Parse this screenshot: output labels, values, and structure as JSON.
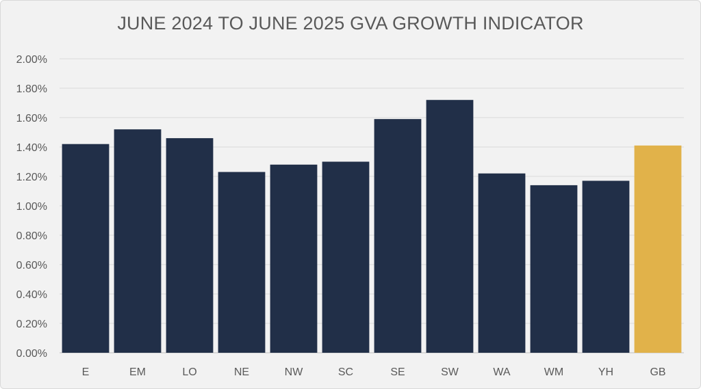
{
  "chart_data": {
    "type": "bar",
    "title": "JUNE 2024 TO JUNE 2025 GVA GROWTH INDICATOR",
    "xlabel": "",
    "ylabel": "",
    "categories": [
      "E",
      "EM",
      "LO",
      "NE",
      "NW",
      "SC",
      "SE",
      "SW",
      "WA",
      "WM",
      "YH",
      "GB"
    ],
    "values": [
      1.42,
      1.52,
      1.46,
      1.23,
      1.28,
      1.3,
      1.59,
      1.72,
      1.22,
      1.14,
      1.17,
      1.41
    ],
    "ylim": [
      0,
      2.0
    ],
    "yticks": [
      "0.00%",
      "0.20%",
      "0.40%",
      "0.60%",
      "0.80%",
      "1.00%",
      "1.20%",
      "1.40%",
      "1.60%",
      "1.80%",
      "2.00%"
    ],
    "grid": true,
    "legend": "none",
    "colors": {
      "default_bar": "#212f48",
      "highlight_bar": "#e1b24a",
      "highlight_category": "GB"
    }
  }
}
